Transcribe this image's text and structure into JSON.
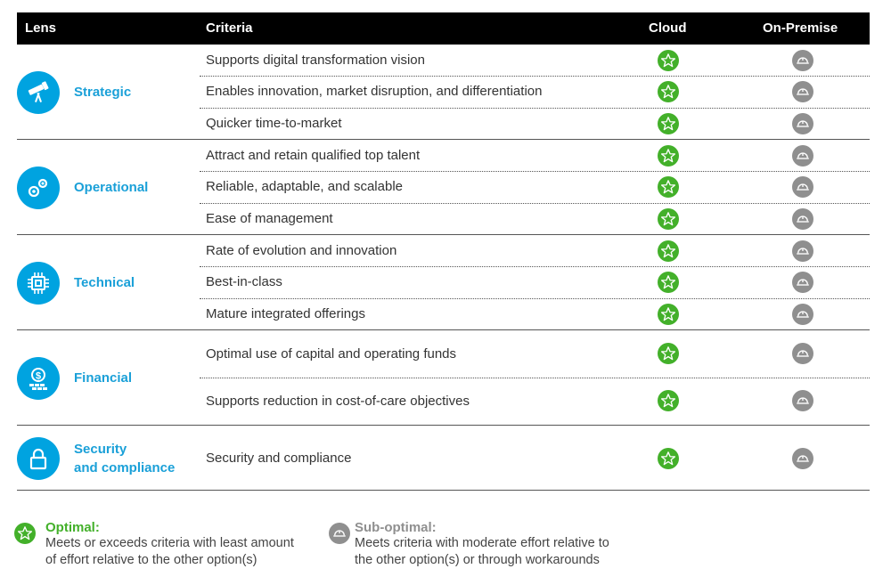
{
  "header": {
    "lens": "Lens",
    "criteria": "Criteria",
    "cloud": "Cloud",
    "onprem": "On-Premise"
  },
  "groups": [
    {
      "name_line1": "Strategic",
      "name_line2": "",
      "icon": "telescope-icon",
      "criteria": [
        "Supports digital transformation vision",
        "Enables innovation, market disruption, and differentiation",
        "Quicker time-to-market"
      ]
    },
    {
      "name_line1": "Operational",
      "name_line2": "",
      "icon": "gears-icon",
      "criteria": [
        "Attract and retain qualified top talent",
        "Reliable, adaptable, and scalable",
        "Ease of management"
      ]
    },
    {
      "name_line1": "Technical",
      "name_line2": "",
      "icon": "chip-icon",
      "criteria": [
        "Rate of evolution and innovation",
        "Best-in-class",
        "Mature integrated offerings"
      ]
    },
    {
      "name_line1": "Financial",
      "name_line2": "",
      "icon": "money-icon",
      "criteria": [
        "Optimal use of capital and operating funds",
        "Supports reduction in cost-of-care objectives"
      ]
    },
    {
      "name_line1": "Security",
      "name_line2": "and compliance",
      "icon": "lock-icon",
      "criteria": [
        "Security and compliance"
      ]
    }
  ],
  "ratings": {
    "cloud": "optimal",
    "onprem": "sub-optimal"
  },
  "legend": {
    "optimal_title": "Optimal:",
    "optimal_line1": "Meets or exceeds criteria with least amount",
    "optimal_line2": "of effort relative to the other option(s)",
    "suboptimal_title": "Sub-optimal:",
    "suboptimal_line1": "Meets criteria with moderate effort relative to",
    "suboptimal_line2": "the other option(s) or through workarounds"
  },
  "colors": {
    "header_bg": "#000000",
    "lens_blue": "#00a3e0",
    "optimal_green": "#43b02a",
    "suboptimal_gray": "#8f8f8f"
  }
}
